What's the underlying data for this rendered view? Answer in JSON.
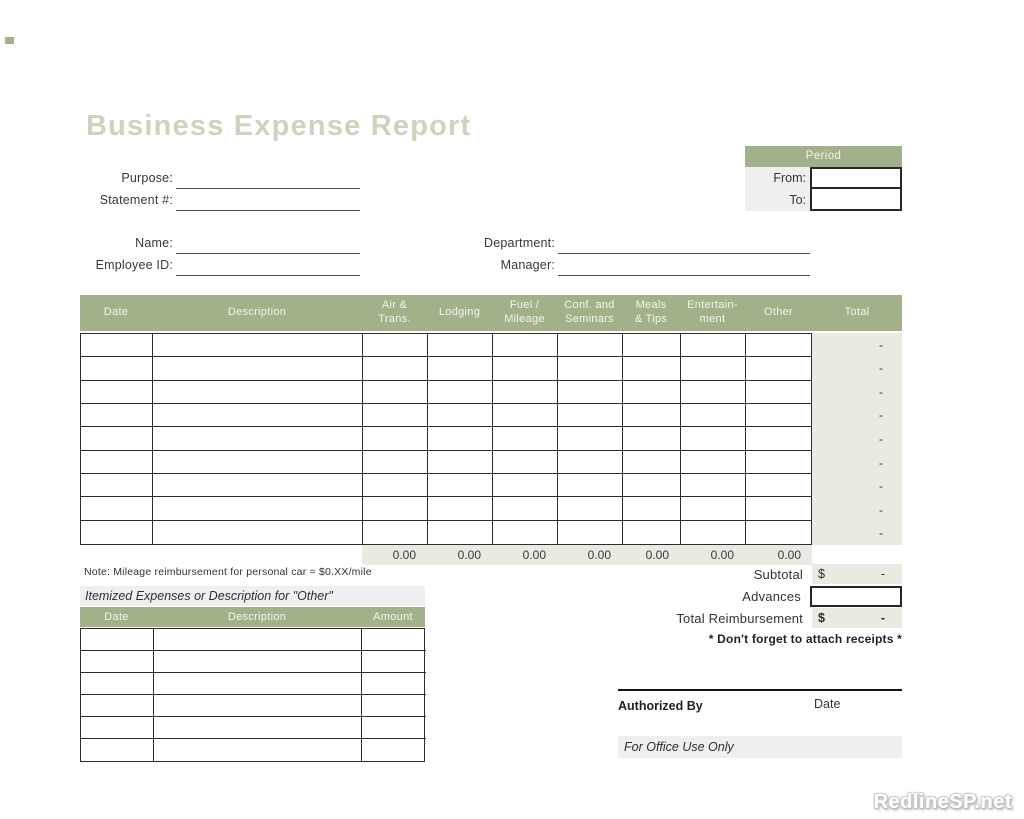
{
  "title": "Business Expense Report",
  "colors": {
    "header_green": "#a3b18b",
    "band_green": "#e9ebe2",
    "band_gray": "#efeff0",
    "title_green": "#ccd4c0"
  },
  "period": {
    "header": "Period",
    "from_label": "From:",
    "to_label": "To:"
  },
  "fields": {
    "purpose_label": "Purpose:",
    "statement_label": "Statement #:",
    "name_label": "Name:",
    "employee_id_label": "Employee ID:",
    "department_label": "Department:",
    "manager_label": "Manager:"
  },
  "main_table": {
    "columns": [
      "Date",
      "Description",
      "Air &\nTrans.",
      "Lodging",
      "Fuel /\nMileage",
      "Conf. and\nSeminars",
      "Meals\n& Tips",
      "Entertain-\nment",
      "Other",
      "Total"
    ],
    "row_count": 9,
    "row_total_placeholder": "-",
    "column_totals": [
      "0.00",
      "0.00",
      "0.00",
      "0.00",
      "0.00",
      "0.00",
      "0.00"
    ]
  },
  "note": "Note: Mileage reimbursement for personal car = $0.XX/mile",
  "itemized": {
    "heading": "Itemized Expenses or Description for \"Other\"",
    "columns": [
      "Date",
      "Description",
      "Amount"
    ],
    "row_count": 6
  },
  "summary": {
    "subtotal_label": "Subtotal",
    "advances_label": "Advances",
    "total_reimbursement_label": "Total Reimbursement",
    "currency_symbol": "$",
    "subtotal_value": "-",
    "total_reimbursement_value": "-",
    "receipts_note": "* Don't forget to attach receipts *"
  },
  "authorization": {
    "authorized_by_label": "Authorized By",
    "date_label": "Date",
    "office_use_label": "For Office Use Only"
  },
  "watermark": "RedlineSP.net"
}
